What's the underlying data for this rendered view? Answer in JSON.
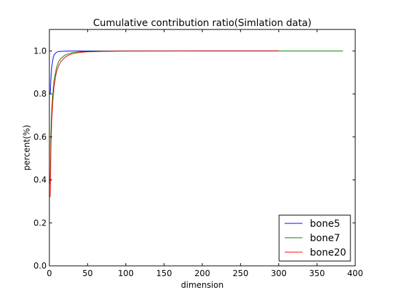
{
  "chart_data": {
    "type": "line",
    "title": "Cumulative contribution ratio(Simlation data)",
    "xlabel": "dimension",
    "ylabel": "percent(%)",
    "xlim": [
      0,
      400
    ],
    "ylim": [
      0.0,
      1.1
    ],
    "xticks": [
      0,
      50,
      100,
      150,
      200,
      250,
      300,
      350,
      400
    ],
    "xtick_labels": [
      "0",
      "50",
      "100",
      "150",
      "200",
      "250",
      "300",
      "350",
      "400"
    ],
    "yticks": [
      0.0,
      0.2,
      0.4,
      0.6,
      0.8,
      1.0
    ],
    "ytick_labels": [
      "0.0",
      "0.2",
      "0.4",
      "0.6",
      "0.8",
      "1.0"
    ],
    "grid": false,
    "legend_position": "bottom-right",
    "series": [
      {
        "name": "bone5",
        "color": "#0000ff",
        "x": [
          1,
          2,
          3,
          4,
          5,
          6,
          8,
          10,
          12,
          15,
          20,
          30,
          50,
          100,
          200,
          300
        ],
        "y": [
          0.8,
          0.87,
          0.92,
          0.95,
          0.97,
          0.98,
          0.99,
          0.995,
          0.997,
          0.998,
          0.999,
          1.0,
          1.0,
          1.0,
          1.0,
          1.0
        ]
      },
      {
        "name": "bone7",
        "color": "#008000",
        "x": [
          1,
          2,
          3,
          4,
          5,
          6,
          8,
          10,
          12,
          15,
          20,
          25,
          30,
          40,
          50,
          70,
          100,
          200,
          300,
          384
        ],
        "y": [
          0.38,
          0.62,
          0.72,
          0.78,
          0.82,
          0.86,
          0.9,
          0.93,
          0.95,
          0.965,
          0.98,
          0.987,
          0.992,
          0.996,
          0.998,
          0.999,
          1.0,
          1.0,
          1.0,
          1.0
        ]
      },
      {
        "name": "bone20",
        "color": "#ff0000",
        "x": [
          1,
          2,
          3,
          4,
          5,
          6,
          8,
          10,
          12,
          15,
          20,
          25,
          30,
          40,
          50,
          70,
          100,
          200,
          300
        ],
        "y": [
          0.32,
          0.55,
          0.67,
          0.74,
          0.79,
          0.83,
          0.88,
          0.91,
          0.93,
          0.95,
          0.97,
          0.98,
          0.987,
          0.993,
          0.996,
          0.998,
          0.999,
          1.0,
          1.0
        ]
      }
    ]
  }
}
